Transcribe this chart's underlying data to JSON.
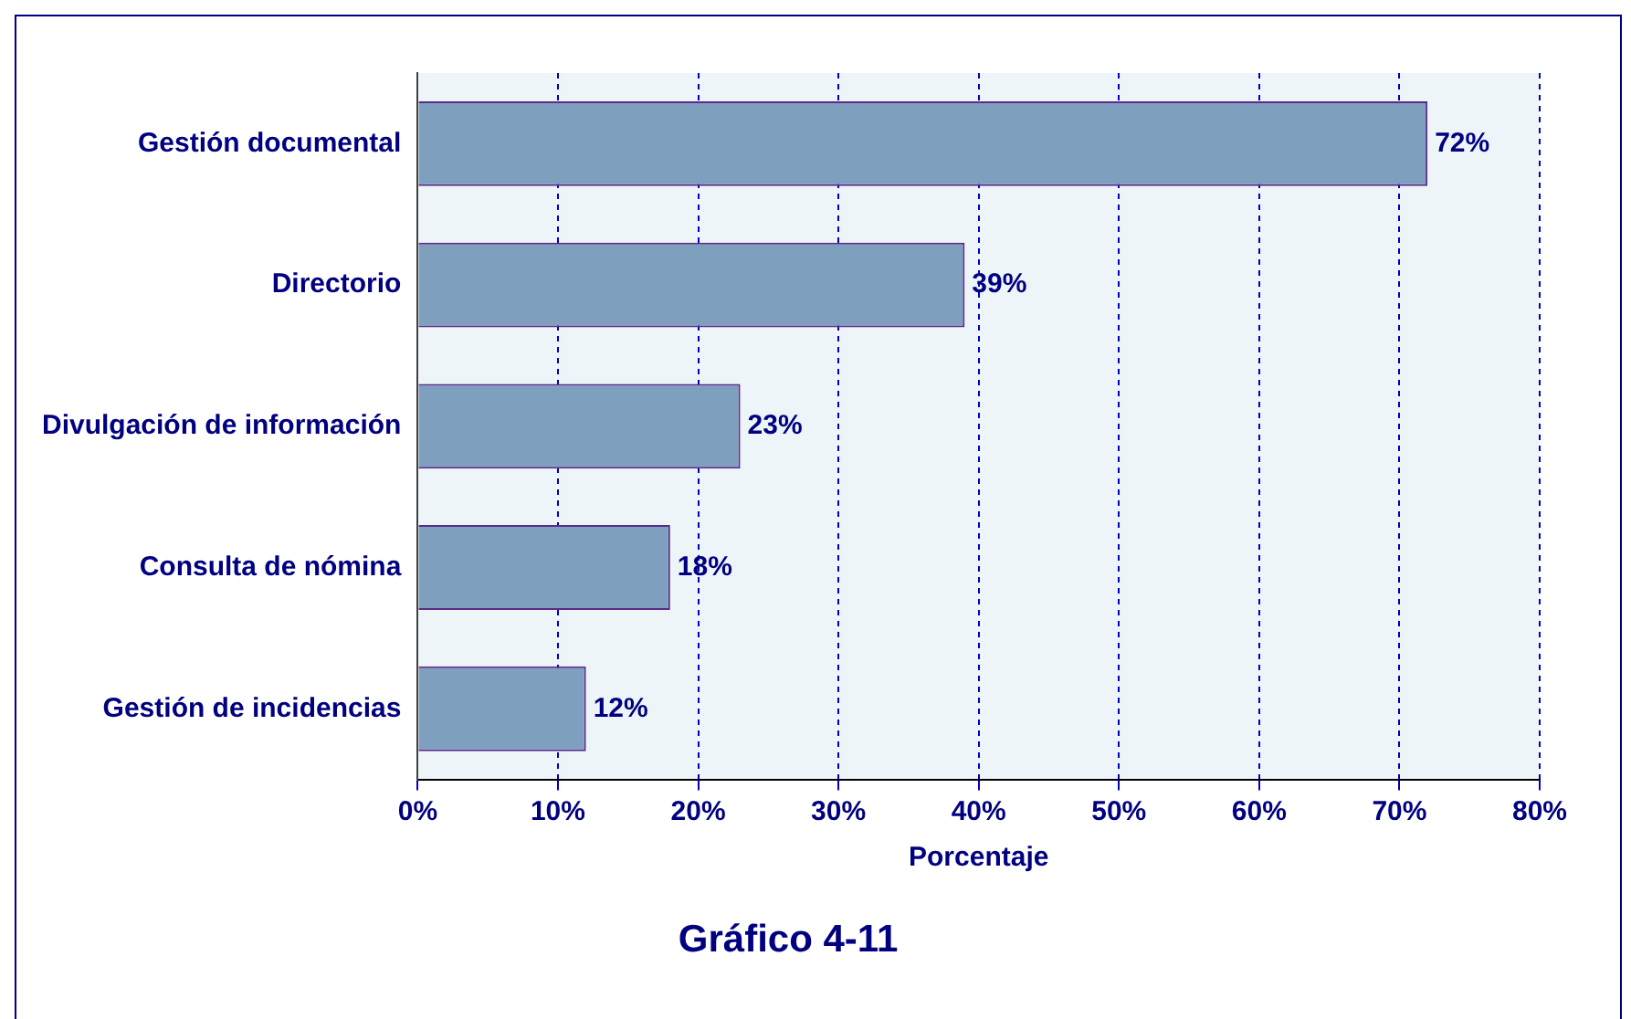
{
  "chart_data": {
    "type": "bar",
    "orientation": "horizontal",
    "title": "Gráfico 4-11",
    "xlabel": "Porcentaje",
    "categories": [
      "Gestión documental",
      "Directorio",
      "Divulgación de información",
      "Consulta de nómina",
      "Gestión de incidencias"
    ],
    "values": [
      72,
      39,
      23,
      18,
      12
    ],
    "color": "#7f9fbf",
    "value_labels": [
      "72%",
      "39%",
      "23%",
      "18%",
      "12%"
    ],
    "xlim": [
      0,
      80
    ],
    "xticks": [
      {
        "value": 0,
        "label": "0%"
      },
      {
        "value": 10,
        "label": "10%"
      },
      {
        "value": 20,
        "label": "20%"
      },
      {
        "value": 30,
        "label": "30%"
      },
      {
        "value": 40,
        "label": "40%"
      },
      {
        "value": 50,
        "label": "50%"
      },
      {
        "value": 60,
        "label": "60%"
      },
      {
        "value": 70,
        "label": "70%"
      },
      {
        "value": 80,
        "label": "80%"
      }
    ],
    "grid": "x",
    "legend": false
  }
}
